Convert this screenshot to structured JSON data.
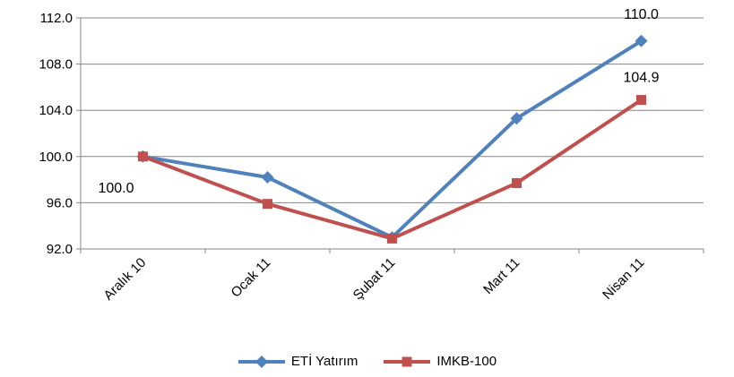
{
  "chart_data": {
    "type": "line",
    "categories": [
      "Aralık 10",
      "Ocak 11",
      "Şubat 11",
      "Mart 11",
      "Nisan 11"
    ],
    "series": [
      {
        "name": "ETİ Yatırım",
        "color": "#4F81BD",
        "marker": "diamond",
        "values": [
          100.0,
          98.2,
          93.0,
          103.3,
          110.0
        ]
      },
      {
        "name": "IMKB-100",
        "color": "#C0504D",
        "marker": "square",
        "values": [
          100.0,
          95.9,
          92.9,
          97.7,
          104.9
        ]
      }
    ],
    "ylim": [
      92.0,
      112.0
    ],
    "yticks": [
      "92.0",
      "96.0",
      "100.0",
      "104.0",
      "108.0",
      "112.0"
    ],
    "data_labels": [
      {
        "series": 0,
        "index": 0,
        "text": "100.0"
      },
      {
        "series": 0,
        "index": 4,
        "text": "110.0"
      },
      {
        "series": 1,
        "index": 4,
        "text": "104.9"
      }
    ],
    "grid": true,
    "legend_position": "bottom"
  }
}
